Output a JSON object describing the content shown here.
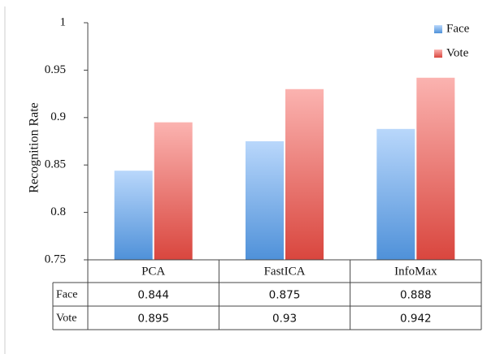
{
  "chart_data": {
    "type": "bar",
    "categories": [
      "PCA",
      "FastICA",
      "InfoMax"
    ],
    "series": [
      {
        "name": "Face",
        "values": [
          0.844,
          0.875,
          0.888
        ]
      },
      {
        "name": "Vote",
        "values": [
          0.895,
          0.93,
          0.942
        ]
      }
    ],
    "ylabel": "Recognition Rate",
    "ylim": [
      0.75,
      1
    ],
    "yticks": [
      0.75,
      0.8,
      0.85,
      0.9,
      0.95,
      1
    ],
    "ytick_labels": [
      "0.75",
      "0.8",
      "0.85",
      "0.9",
      "0.95",
      "1"
    ],
    "grid": false,
    "legend": "top-right",
    "data_table": {
      "rows": [
        {
          "label": "Face",
          "cells": [
            "0.844",
            "0.875",
            "0.888"
          ]
        },
        {
          "label": "Vote",
          "cells": [
            "0.895",
            "0.93",
            "0.942"
          ]
        }
      ]
    },
    "colors": {
      "Face": {
        "top": "#b9d7fb",
        "bottom": "#4f91d9"
      },
      "Vote": {
        "top": "#fbb3b0",
        "bottom": "#d9463e"
      }
    }
  }
}
